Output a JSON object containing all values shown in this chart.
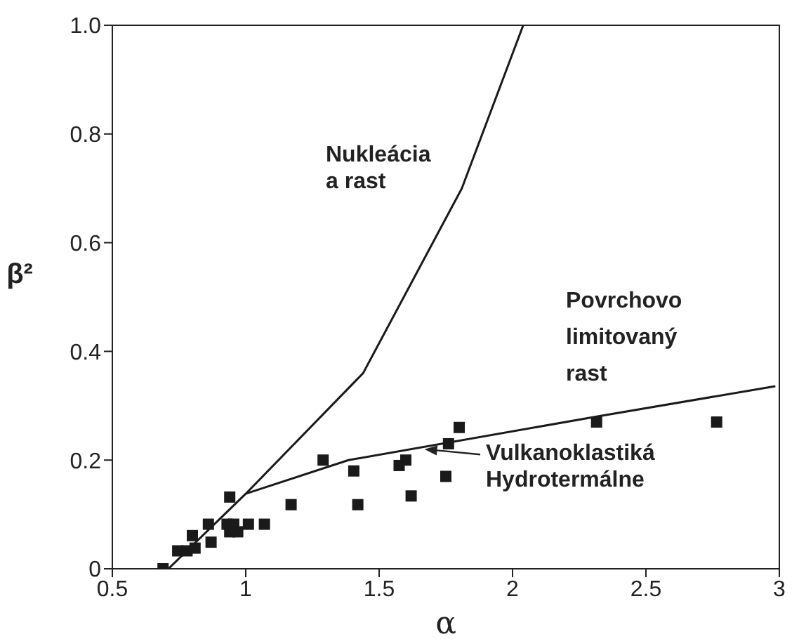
{
  "chart_data": {
    "type": "scatter",
    "xlabel": "α",
    "ylabel": "β²",
    "xlim": [
      0.5,
      3
    ],
    "xticks": [
      0.5,
      1,
      1.5,
      2,
      2.5,
      3
    ],
    "ylim": [
      0,
      1
    ],
    "yticks": [
      0,
      0.2,
      0.4,
      0.6,
      0.8,
      {
        "value": 1,
        "label": "1.0"
      }
    ],
    "grid": false,
    "legend": false,
    "marker": "square",
    "series": [
      {
        "type": "scatter",
        "color": "#1a1a1a",
        "x": [
          0.69,
          0.745,
          0.78,
          0.8,
          0.81,
          0.86,
          0.87,
          0.94,
          0.93,
          0.94,
          0.955,
          0.97,
          1.01,
          1.07,
          1.17,
          1.29,
          1.405,
          1.42,
          1.575,
          1.6,
          1.62,
          1.75,
          1.76,
          1.8,
          2.315,
          2.765
        ],
        "values": [
          0,
          0.033,
          0.033,
          0.061,
          0.038,
          0.082,
          0.049,
          0.132,
          0.082,
          0.068,
          0.082,
          0.068,
          0.082,
          0.082,
          0.118,
          0.2,
          0.18,
          0.118,
          0.19,
          0.2,
          0.134,
          0.17,
          0.23,
          0.26,
          0.27,
          0.27
        ]
      },
      {
        "type": "line",
        "color": "#1a1a1a",
        "line_style": "solid",
        "marker": "none",
        "x": [
          0.71,
          1.0,
          1.44,
          1.81,
          2.04
        ],
        "values": [
          0,
          0.138,
          0.36,
          0.7,
          1.0
        ]
      },
      {
        "type": "line",
        "color": "#1a1a1a",
        "line_style": "solid",
        "marker": "none",
        "x": [
          1.0,
          1.385,
          2.315,
          2.985
        ],
        "values": [
          0.138,
          0.2,
          0.28,
          0.336
        ]
      }
    ],
    "annotations": [
      "Nukleácia\na rast",
      "Povrchovo\nlimitovaný\nrast",
      {
        "text": "Vulkanoklastiká\nHydrotermálne",
        "x": 1.67,
        "y": 0.22
      }
    ]
  }
}
